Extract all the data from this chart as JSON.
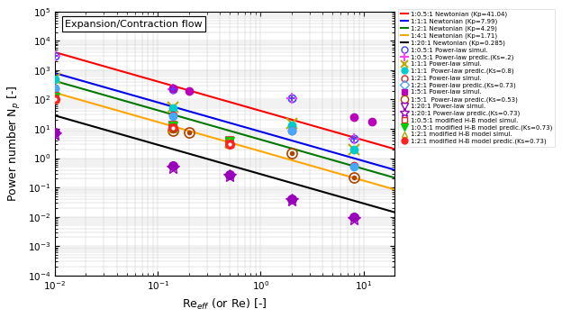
{
  "title_text": "Expansion/Contraction flow",
  "xlabel": "Re$_{eff}$ (or Re) [-]",
  "ylabel": "Power number N$_p$ [-]",
  "xlim": [
    0.01,
    20
  ],
  "ylim": [
    0.0001,
    100000.0
  ],
  "newtonian": [
    {
      "label": "1:0.5:1 Newtonian (Kp=41.04)",
      "color": "#FF0000",
      "Kp": 41.04
    },
    {
      "label": "1:1:1 Newtonian (Kp=7.99)",
      "color": "#0000EE",
      "Kp": 7.99
    },
    {
      "label": "1:2:1 Newtonian (Kp=4.29)",
      "color": "#007700",
      "Kp": 4.29
    },
    {
      "label": "1:4:1 Newtonian (Kp=1.71)",
      "color": "#FFA500",
      "Kp": 1.71
    },
    {
      "label": "1:20:1 Newtonian (Kp=0.285)",
      "color": "#000000",
      "Kp": 0.285
    }
  ],
  "scatter": [
    {
      "label": "1:0.5:1 Power-law simul.",
      "color": "#4444FF",
      "marker": "oplus",
      "ms": 6,
      "x": [
        0.01,
        0.14,
        2.0,
        8.0
      ],
      "y": [
        3000,
        220,
        110,
        4.5
      ]
    },
    {
      "label": "1:0.5:1 Power-law predic.(Ks=.2)",
      "color": "#FF44FF",
      "marker": "+",
      "ms": 7,
      "mfc": "#FF44FF",
      "x": [
        0.01,
        0.14,
        2.0,
        8.0
      ],
      "y": [
        3000,
        220,
        110,
        4.5
      ]
    },
    {
      "label": "1:1:1 Power-law simul.",
      "color": "#BBAA00",
      "marker": "x",
      "ms": 7,
      "mfc": "#BBAA00",
      "x": [
        0.01,
        0.14,
        2.0,
        8.0
      ],
      "y": [
        520,
        55,
        15,
        2.0
      ]
    },
    {
      "label": "1:1:1  Power-law predic.(Ks=0.8)",
      "color": "#00CCCC",
      "marker": "o",
      "ms": 6,
      "mfc": "#00CCCC",
      "x": [
        0.01,
        0.14,
        2.0,
        8.0
      ],
      "y": [
        500,
        50,
        13,
        1.9
      ]
    },
    {
      "label": "1:2:1 Power-law simul.",
      "color": "#DD2222",
      "marker": "o",
      "ms": 6,
      "mfc": "none",
      "x": [
        0.01,
        0.14,
        2.0,
        8.0
      ],
      "y": [
        250,
        28,
        9,
        0.55
      ]
    },
    {
      "label": "1:2:1 Power-law predic.(Ks=0.73)",
      "color": "#44AAFF",
      "marker": "D",
      "ms": 6,
      "mfc": "none",
      "x": [
        0.01,
        0.14,
        2.0,
        8.0
      ],
      "y": [
        240,
        27,
        8.5,
        0.52
      ]
    },
    {
      "label": "1:5:1 Power-law simul.",
      "color": "#BB00BB",
      "marker": "s",
      "ms": 6,
      "mfc": "#BB00BB",
      "x": [
        0.14,
        0.2,
        8.0,
        12.0
      ],
      "y": [
        240,
        200,
        25,
        18
      ]
    },
    {
      "label": "1:5:1  Power-law predic.(Ks=0.53)",
      "color": "#AA4400",
      "marker": "odot",
      "ms": 6,
      "x": [
        0.14,
        0.2,
        2.0,
        8.0
      ],
      "y": [
        8.5,
        7.5,
        1.5,
        0.22
      ]
    },
    {
      "label": "1:20:1 Power-law simul.",
      "color": "#9900BB",
      "marker": "v",
      "ms": 7,
      "mfc": "none",
      "x": [
        0.01,
        0.14,
        0.5,
        2.0,
        8.0
      ],
      "y": [
        7.5,
        0.55,
        0.28,
        0.04,
        0.0095
      ]
    },
    {
      "label": "1:20:1 Power-law predic.(Ks=0.73)",
      "color": "#9900BB",
      "marker": "star",
      "ms": 8,
      "mfc": "#9900BB",
      "x": [
        0.01,
        0.14,
        0.5,
        2.0,
        8.0
      ],
      "y": [
        6.5,
        0.48,
        0.25,
        0.038,
        0.0085
      ]
    },
    {
      "label": "1:0.5:1 modified H-B model simul.",
      "color": "#DD2222",
      "marker": "sq_open",
      "ms": 6,
      "x": [
        0.01,
        0.14,
        0.5
      ],
      "y": [
        130,
        13,
        4.0
      ]
    },
    {
      "label": "1:0.5:1 modified H-B model predic.(Ks=0.73)",
      "color": "#00CC00",
      "marker": "v_filled",
      "ms": 7,
      "mfc": "#00CC00",
      "x": [
        0.01,
        0.14,
        0.5
      ],
      "y": [
        120,
        12,
        3.6
      ]
    },
    {
      "label": "1:2:1 modified H-B model simul.",
      "color": "#AAAA00",
      "marker": "tri_open",
      "ms": 7,
      "mfc": "none",
      "x": [
        0.01,
        0.14,
        0.5
      ],
      "y": [
        110,
        11,
        3.2
      ]
    },
    {
      "label": "1:2:1 modified H-B model predic.(Ks=0.73)",
      "color": "#FF2222",
      "marker": "circle_dot",
      "ms": 6,
      "x": [
        0.01,
        0.14,
        0.5
      ],
      "y": [
        100,
        10.5,
        3.0
      ]
    }
  ],
  "legend": [
    {
      "type": "line",
      "color": "#FF0000",
      "label": "1:0.5:1 Newtonian (Kp=41.04)"
    },
    {
      "type": "line",
      "color": "#0000EE",
      "label": "1:1:1 Newtonian (Kp=7.99)"
    },
    {
      "type": "line",
      "color": "#007700",
      "label": "1:2:1 Newtonian (Kp=4.29)"
    },
    {
      "type": "line",
      "color": "#FFA500",
      "label": "1:4:1 Newtonian (Kp=1.71)"
    },
    {
      "type": "line",
      "color": "#000000",
      "label": "1:20:1 Newtonian (Kp=0.285)"
    },
    {
      "type": "marker",
      "color": "#4444FF",
      "marker": "oplus",
      "label": "1:0.5:1 Power-law simul."
    },
    {
      "type": "marker",
      "color": "#FF44FF",
      "marker": "+",
      "label": "1:0.5:1 Power-law predic.(Ks=.2)"
    },
    {
      "type": "marker",
      "color": "#BBAA00",
      "marker": "x",
      "label": "1:1:1 Power-law simul."
    },
    {
      "type": "marker",
      "color": "#00CCCC",
      "marker": "o_filled",
      "label": "1:1:1  Power-law predic.(Ks=0.8)"
    },
    {
      "type": "marker",
      "color": "#DD2222",
      "marker": "o_open",
      "label": "1:2:1 Power-law simul."
    },
    {
      "type": "marker",
      "color": "#44AAFF",
      "marker": "D_open",
      "label": "1:2:1 Power-law predic.(Ks=0.73)"
    },
    {
      "type": "marker",
      "color": "#BB00BB",
      "marker": "s_filled",
      "label": "1:5:1 Power-law simul."
    },
    {
      "type": "marker",
      "color": "#AA4400",
      "marker": "odot",
      "label": "1:5:1  Power-law predic.(Ks=0.53)"
    },
    {
      "type": "marker",
      "color": "#9900BB",
      "marker": "v_open",
      "label": "1:20:1 Power-law simul."
    },
    {
      "type": "marker",
      "color": "#9900BB",
      "marker": "star",
      "label": "1:20:1 Power-law predic.(Ks=0.73)"
    },
    {
      "type": "marker",
      "color": "#DD2222",
      "marker": "sq_open",
      "label": "1:0.5:1 modified H-B model simul."
    },
    {
      "type": "marker",
      "color": "#00CC00",
      "marker": "v_filled",
      "label": "1:0.5:1 modified H-B model predic.(Ks=0.73)"
    },
    {
      "type": "marker",
      "color": "#AAAA00",
      "marker": "tri_open",
      "label": "1:2:1 modified H-B model simul."
    },
    {
      "type": "marker",
      "color": "#FF2222",
      "marker": "circle_dot",
      "label": "1:2:1 modified H-B model predic.(Ks=0.73)"
    }
  ]
}
